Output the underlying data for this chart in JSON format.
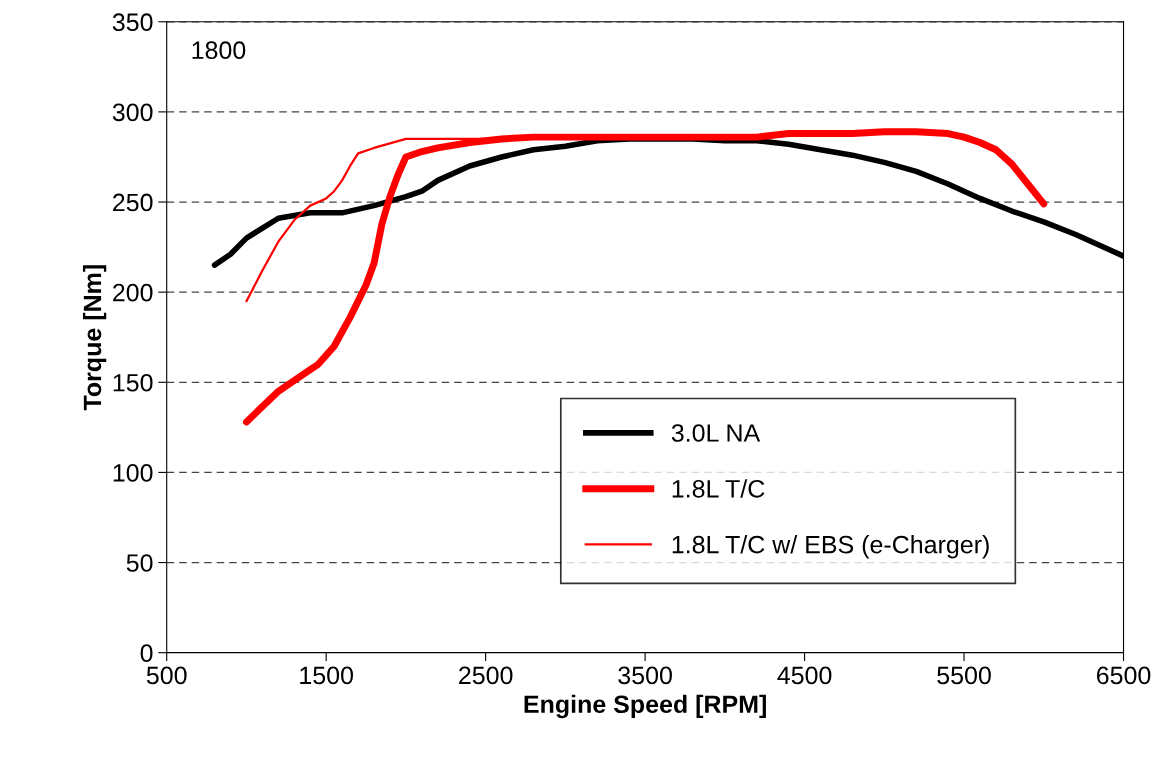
{
  "chart_data": {
    "type": "line",
    "xlabel": "Engine Speed [RPM]",
    "ylabel": "Torque [Nm]",
    "annotations": [
      "1800"
    ],
    "xlim": [
      500,
      6500
    ],
    "xticks": [
      500,
      1500,
      2500,
      3500,
      4500,
      5500,
      6500
    ],
    "ylim": [
      0,
      350
    ],
    "yticks": [
      0,
      50,
      100,
      150,
      200,
      250,
      300,
      350
    ],
    "grid": "y",
    "legend": "bottom right",
    "marker": "none",
    "line_style": "solid",
    "series": [
      {
        "name": "3.0L NA",
        "color": "#000000",
        "x": [
          800,
          900,
          1000,
          1200,
          1400,
          1600,
          1800,
          2000,
          2100,
          2200,
          2400,
          2600,
          2800,
          3000,
          3200,
          3400,
          3800,
          4000,
          4200,
          4400,
          4800,
          5000,
          5200,
          5400,
          5600,
          5800,
          6000,
          6200,
          6500
        ],
        "values": [
          215,
          221,
          230,
          241,
          244,
          244,
          248,
          253,
          256,
          262,
          270,
          275,
          279,
          281,
          284,
          285,
          285,
          284,
          284,
          282,
          276,
          272,
          267,
          260,
          252,
          245,
          239,
          232,
          220
        ]
      },
      {
        "name": "1.8L T/C",
        "color": "#ff0000",
        "x": [
          1000,
          1200,
          1400,
          1450,
          1550,
          1650,
          1750,
          1800,
          1850,
          1900,
          1950,
          2000,
          2100,
          2200,
          2400,
          2600,
          2800,
          4200,
          4400,
          4800,
          5000,
          5200,
          5400,
          5500,
          5600,
          5700,
          5800,
          5900,
          6000
        ],
        "values": [
          128,
          145,
          157,
          160,
          170,
          186,
          204,
          216,
          238,
          253,
          265,
          275,
          278,
          280,
          283,
          285,
          286,
          286,
          288,
          288,
          289,
          289,
          288,
          286,
          283,
          279,
          271,
          260,
          249
        ]
      },
      {
        "name": "1.8L T/C w/ EBS (e-Charger)",
        "color": "#ff0000",
        "x": [
          1000,
          1100,
          1200,
          1300,
          1400,
          1500,
          1550,
          1600,
          1650,
          1700,
          1800,
          2000,
          3000
        ],
        "values": [
          195,
          212,
          228,
          240,
          248,
          252,
          256,
          262,
          270,
          277,
          280,
          285,
          285
        ]
      }
    ]
  }
}
